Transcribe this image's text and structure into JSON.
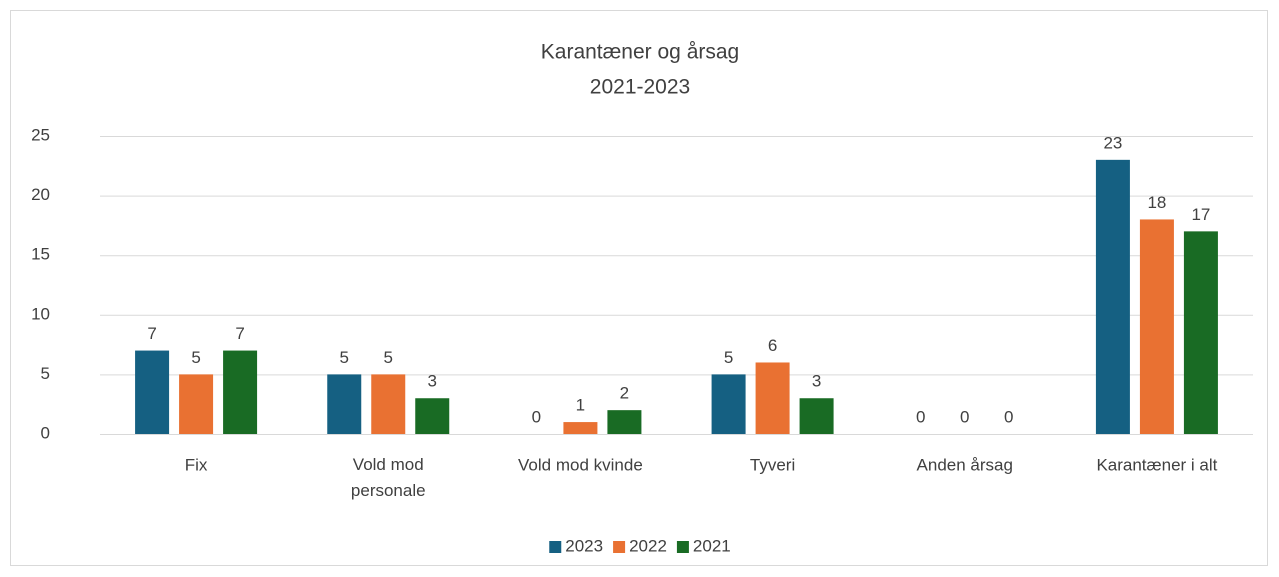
{
  "chart_data": {
    "type": "bar",
    "title": "Karantæner og årsag",
    "subtitle": "2021-2023",
    "categories": [
      "Fix",
      "Vold mod personale",
      "Vold mod kvinde",
      "Tyveri",
      "Anden årsag",
      "Karantæner i alt"
    ],
    "series": [
      {
        "name": "2023",
        "color": "#156082",
        "values": [
          7,
          5,
          0,
          5,
          0,
          23
        ]
      },
      {
        "name": "2022",
        "color": "#e97132",
        "values": [
          5,
          5,
          1,
          6,
          0,
          18
        ]
      },
      {
        "name": "2021",
        "color": "#196b24",
        "values": [
          7,
          3,
          2,
          3,
          0,
          17
        ]
      }
    ],
    "ylim": [
      0,
      25
    ],
    "yticks": [
      0,
      5,
      10,
      15,
      20,
      25
    ],
    "grid": true,
    "legend": "bottom"
  }
}
